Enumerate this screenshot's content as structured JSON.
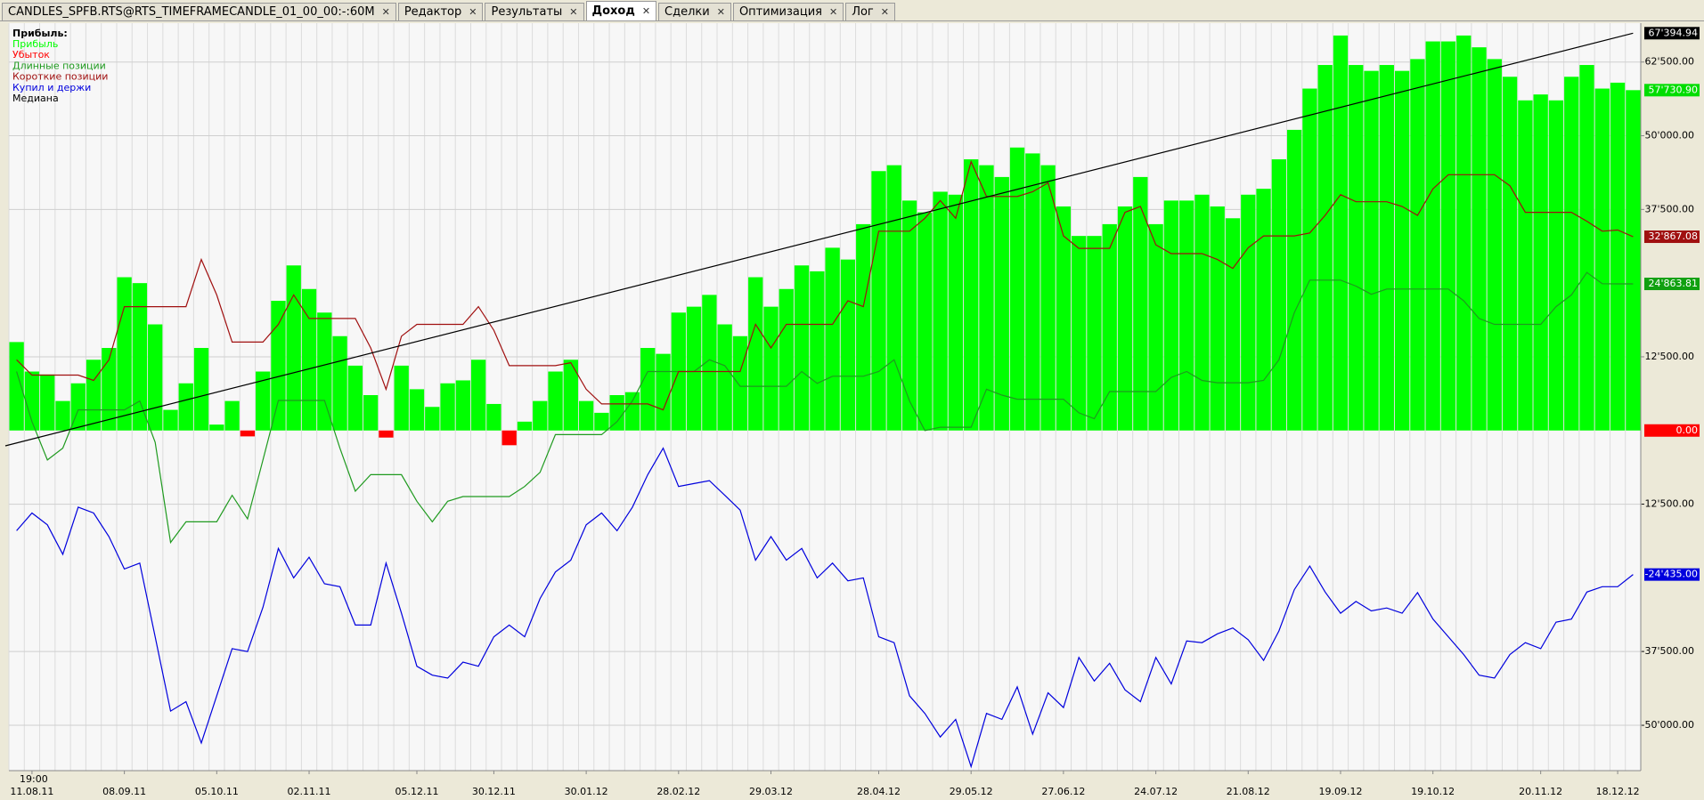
{
  "tabs": [
    "CANDLES_SPFB.RTS@RTS_TIMEFRAMECANDLE_01_00_00:-:60M",
    "Редактор",
    "Результаты",
    "Доход",
    "Сделки",
    "Оптимизация",
    "Лог"
  ],
  "active_tab": 3,
  "chart_data": {
    "type": "bar",
    "legend_title": "Прибыль:",
    "time_label": "19:00",
    "categories": [
      null,
      "11.08.11",
      null,
      null,
      null,
      null,
      null,
      "08.09.11",
      null,
      null,
      null,
      null,
      null,
      "05.10.11",
      null,
      null,
      null,
      null,
      null,
      "02.11.11",
      null,
      null,
      null,
      null,
      null,
      null,
      "05.12.11",
      null,
      null,
      null,
      null,
      "30.12.11",
      null,
      null,
      null,
      null,
      null,
      "30.01.12",
      null,
      null,
      null,
      null,
      null,
      "28.02.12",
      null,
      null,
      null,
      null,
      null,
      "29.03.12",
      null,
      null,
      null,
      null,
      null,
      null,
      "28.04.12",
      null,
      null,
      null,
      null,
      null,
      "29.05.12",
      null,
      null,
      null,
      null,
      null,
      "27.06.12",
      null,
      null,
      null,
      null,
      null,
      "24.07.12",
      null,
      null,
      null,
      null,
      null,
      "21.08.12",
      null,
      null,
      null,
      null,
      null,
      "19.09.12",
      null,
      null,
      null,
      null,
      null,
      "19.10.12",
      null,
      null,
      null,
      null,
      null,
      null,
      "20.11.12",
      null,
      null,
      null,
      null,
      "18.12.12",
      null
    ],
    "ylim": [
      -57700,
      69100
    ],
    "yticks": [
      {
        "value": 62500,
        "label": "62'500.00"
      },
      {
        "value": 50000,
        "label": "50'000.00"
      },
      {
        "value": 37500,
        "label": "37'500.00"
      },
      {
        "value": 12500,
        "label": "12'500.00"
      },
      {
        "value": -12500,
        "label": "-12'500.00"
      },
      {
        "value": -37500,
        "label": "-37'500.00"
      },
      {
        "value": -50000,
        "label": "-50'000.00"
      }
    ],
    "grid": true,
    "bars": {
      "name": "Прибыль",
      "color": "#00ff00",
      "last_label": "57'730.90",
      "values": [
        15000,
        10000,
        9500,
        5000,
        8000,
        12000,
        14000,
        26000,
        25000,
        18000,
        3500,
        8000,
        14000,
        1000,
        5000,
        -1000,
        10000,
        22000,
        28000,
        24000,
        20000,
        16000,
        11000,
        6000,
        -1200,
        11000,
        7000,
        4000,
        8000,
        8500,
        12000,
        4500,
        -2500,
        1500,
        5000,
        10000,
        12000,
        5000,
        3000,
        6000,
        6500,
        14000,
        13000,
        20000,
        21000,
        23000,
        18000,
        16000,
        26000,
        21000,
        24000,
        28000,
        27000,
        31000,
        29000,
        35000,
        44000,
        45000,
        39000,
        37000,
        40500,
        40000,
        46000,
        45000,
        43000,
        48000,
        47000,
        45000,
        38000,
        33000,
        33000,
        35000,
        38000,
        43000,
        35000,
        39000,
        39000,
        40000,
        38000,
        36000,
        40000,
        41000,
        46000,
        51000,
        58000,
        62000,
        67000,
        62000,
        61000,
        62000,
        61000,
        63000,
        66000,
        66000,
        67000,
        65000,
        63000,
        60000,
        56000,
        57000,
        56000,
        60000,
        62000,
        58000,
        59000,
        57730.9
      ]
    },
    "loss": {
      "name": "Убыток",
      "color": "#ff0000",
      "last_value": 0,
      "last_label": "0.00"
    },
    "series": [
      {
        "name": "Длинные позиции",
        "color": "#1f9a1f",
        "badge_color": "#10a010",
        "last_label": "24'863.81",
        "values": [
          10000,
          1500,
          -5000,
          -3000,
          3500,
          3500,
          3500,
          3500,
          5000,
          -2000,
          -19000,
          -15500,
          -15500,
          -15500,
          -11000,
          -15000,
          -5000,
          5100,
          5100,
          5100,
          5100,
          -3000,
          -10300,
          -7500,
          -7500,
          -7500,
          -12000,
          -15500,
          -12000,
          -11200,
          -11200,
          -11200,
          -11200,
          -9500,
          -7100,
          -700,
          -700,
          -700,
          -700,
          1500,
          5000,
          10000,
          10000,
          10000,
          10000,
          12000,
          11000,
          7500,
          7500,
          7500,
          7500,
          10000,
          8000,
          9200,
          9200,
          9200,
          10000,
          12000,
          5000,
          0,
          550,
          550,
          550,
          7000,
          6000,
          5300,
          5300,
          5300,
          5300,
          3000,
          2000,
          6600,
          6600,
          6600,
          6600,
          9000,
          10000,
          8500,
          8100,
          8100,
          8100,
          8500,
          12000,
          20000,
          25500,
          25500,
          25500,
          24500,
          23100,
          24000,
          24000,
          24000,
          24000,
          24000,
          22000,
          19000,
          18000,
          18000,
          18000,
          18000,
          21000,
          23000,
          26800,
          24900,
          24863.81,
          24863.81
        ]
      },
      {
        "name": "Короткие позиции",
        "color": "#a01010",
        "badge_color": "#a01010",
        "last_label": "32'867.08",
        "values": [
          12000,
          9400,
          9400,
          9400,
          9400,
          8500,
          12000,
          21000,
          21000,
          21000,
          21000,
          21000,
          29000,
          23000,
          15000,
          15000,
          15000,
          18000,
          23000,
          19000,
          19000,
          19000,
          19000,
          14000,
          7000,
          16000,
          18000,
          18000,
          18000,
          18000,
          21000,
          17000,
          11000,
          11000,
          11000,
          11000,
          11500,
          7000,
          4500,
          4500,
          4500,
          4500,
          3500,
          10000,
          10000,
          10000,
          10000,
          10000,
          18000,
          14000,
          18000,
          18000,
          18000,
          18000,
          22000,
          21000,
          33800,
          33800,
          33800,
          36000,
          39000,
          36000,
          45600,
          39700,
          39700,
          39700,
          40500,
          42000,
          33000,
          30900,
          30900,
          30900,
          37000,
          38000,
          31500,
          30000,
          30000,
          30000,
          29000,
          27500,
          31000,
          33000,
          33000,
          33000,
          33500,
          36500,
          40000,
          38800,
          38800,
          38800,
          38000,
          36500,
          41000,
          43400,
          43400,
          43400,
          43400,
          41500,
          37000,
          37000,
          37000,
          37000,
          35500,
          33800,
          34000,
          32867.08
        ]
      },
      {
        "name": "Купил и держи",
        "color": "#0000dd",
        "badge_color": "#0000dd",
        "last_label": "-24'435.00",
        "values": [
          -17000,
          -14000,
          -16000,
          -21000,
          -13000,
          -14000,
          -18000,
          -23500,
          -22500,
          -35000,
          -47600,
          -46000,
          -53000,
          -45000,
          -37000,
          -37500,
          -30000,
          -20000,
          -25000,
          -21500,
          -26000,
          -26500,
          -33000,
          -33000,
          -22500,
          -31000,
          -40000,
          -41500,
          -42000,
          -39300,
          -40000,
          -35000,
          -33000,
          -35000,
          -28500,
          -24000,
          -22000,
          -16000,
          -14000,
          -17000,
          -13000,
          -7500,
          -3000,
          -9500,
          -9000,
          -8500,
          -11000,
          -13500,
          -22000,
          -18000,
          -22000,
          -20000,
          -25000,
          -22500,
          -25500,
          -25000,
          -35000,
          -36000,
          -45000,
          -48000,
          -52000,
          -49000,
          -57000,
          -48000,
          -49000,
          -43500,
          -51500,
          -44500,
          -47000,
          -38500,
          -42500,
          -39500,
          -44000,
          -46000,
          -38500,
          -43000,
          -35700,
          -36000,
          -34500,
          -33500,
          -35500,
          -39000,
          -34000,
          -27000,
          -23000,
          -27400,
          -31000,
          -29000,
          -30600,
          -30100,
          -31000,
          -27500,
          -32000,
          -35000,
          -38000,
          -41500,
          -42000,
          -38000,
          -36000,
          -37000,
          -32500,
          -32000,
          -27400,
          -26500,
          -26500,
          -24435
        ]
      }
    ],
    "median": {
      "name": "Медиана",
      "color": "#000000",
      "start": -2600,
      "end": 67394.94,
      "last_label": "67'394.94"
    }
  }
}
